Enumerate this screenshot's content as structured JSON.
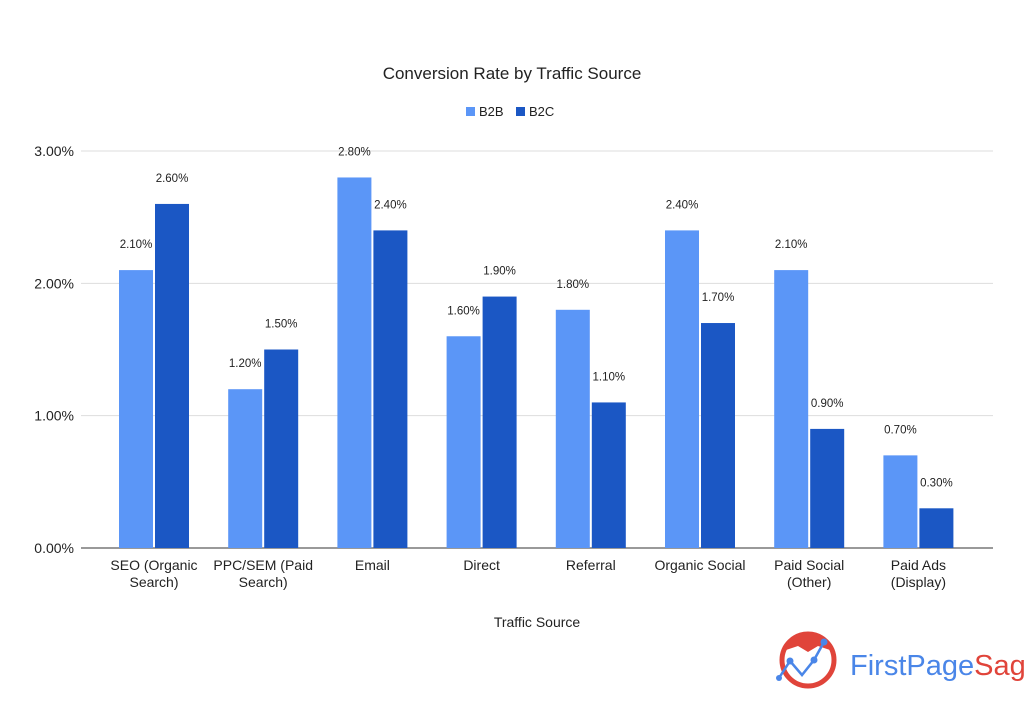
{
  "chart_data": {
    "type": "bar",
    "title": "Conversion Rate by Traffic Source",
    "xlabel": "Traffic Source",
    "ylabel": "",
    "ylim": [
      0,
      3
    ],
    "yticks": [
      "0.00%",
      "1.00%",
      "2.00%",
      "3.00%"
    ],
    "grid": true,
    "legend_position": "top",
    "categories": [
      [
        "SEO (Organic",
        "Search)"
      ],
      [
        "PPC/SEM (Paid",
        "Search)"
      ],
      [
        "Email"
      ],
      [
        "Direct"
      ],
      [
        "Referral"
      ],
      [
        "Organic Social"
      ],
      [
        "Paid Social",
        "(Other)"
      ],
      [
        "Paid Ads",
        "(Display)"
      ]
    ],
    "series": [
      {
        "name": "B2B",
        "color": "#5b96f7",
        "values": [
          2.1,
          1.2,
          2.8,
          1.6,
          1.8,
          2.4,
          2.1,
          0.7
        ],
        "labels": [
          "2.10%",
          "1.20%",
          "2.80%",
          "1.60%",
          "1.80%",
          "2.40%",
          "2.10%",
          "0.70%"
        ]
      },
      {
        "name": "B2C",
        "color": "#1b57c4",
        "values": [
          2.6,
          1.5,
          2.4,
          1.9,
          1.1,
          1.7,
          0.9,
          0.3
        ],
        "labels": [
          "2.60%",
          "1.50%",
          "2.40%",
          "1.90%",
          "1.10%",
          "1.70%",
          "0.90%",
          "0.30%"
        ]
      }
    ]
  },
  "logo": {
    "text_part1": "FirstPage",
    "text_part2": "Sage",
    "color1": "#4a86e8",
    "color2": "#e0443a"
  }
}
